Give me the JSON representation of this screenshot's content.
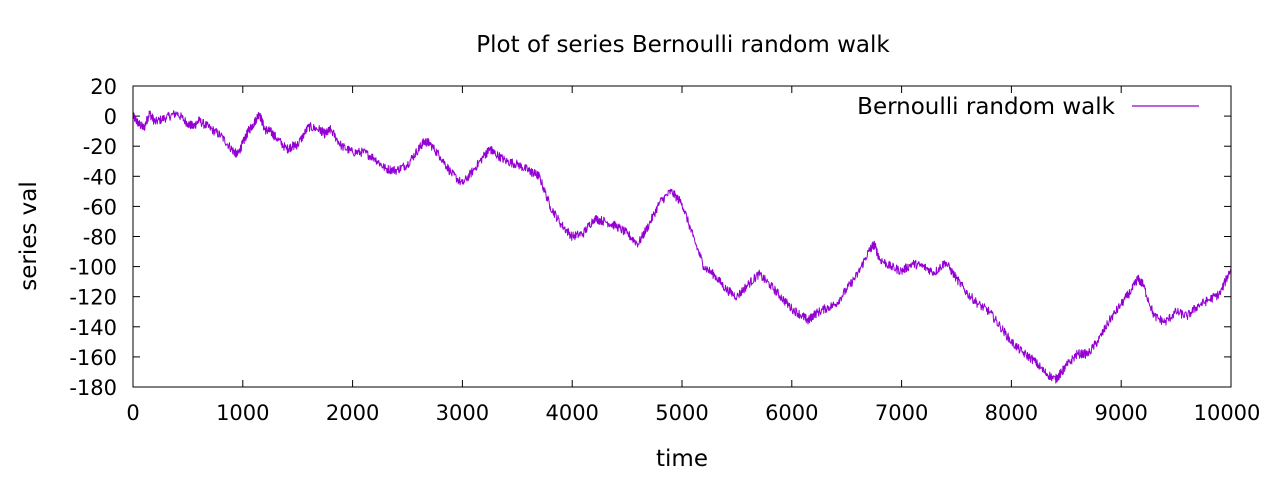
{
  "chart_data": {
    "type": "line",
    "title": "Plot of series Bernoulli random walk",
    "xlabel": "time",
    "ylabel": "series val",
    "xlim": [
      0,
      10000
    ],
    "ylim": [
      -180,
      20
    ],
    "xticks": [
      0,
      1000,
      2000,
      3000,
      4000,
      5000,
      6000,
      7000,
      8000,
      9000,
      10000
    ],
    "yticks": [
      20,
      0,
      -20,
      -40,
      -60,
      -80,
      -100,
      -120,
      -140,
      -160,
      -180
    ],
    "grid": false,
    "legend_position": "top-right",
    "series": [
      {
        "name": "Bernoulli random walk",
        "color": "#9400d3",
        "x": [
          0,
          50,
          100,
          150,
          200,
          300,
          400,
          500,
          550,
          600,
          700,
          800,
          900,
          950,
          1000,
          1050,
          1100,
          1150,
          1200,
          1250,
          1300,
          1400,
          1450,
          1500,
          1600,
          1700,
          1750,
          1800,
          1900,
          2000,
          2100,
          2200,
          2300,
          2400,
          2500,
          2600,
          2650,
          2700,
          2800,
          2900,
          3000,
          3100,
          3200,
          3250,
          3300,
          3400,
          3500,
          3600,
          3650,
          3700,
          3800,
          3900,
          4000,
          4100,
          4200,
          4300,
          4400,
          4500,
          4600,
          4700,
          4800,
          4900,
          5000,
          5100,
          5200,
          5300,
          5400,
          5500,
          5600,
          5700,
          5800,
          5900,
          6000,
          6100,
          6150,
          6200,
          6300,
          6400,
          6500,
          6600,
          6700,
          6750,
          6800,
          6900,
          7000,
          7100,
          7200,
          7300,
          7400,
          7500,
          7600,
          7700,
          7800,
          7900,
          8000,
          8100,
          8200,
          8300,
          8400,
          8450,
          8500,
          8600,
          8700,
          8800,
          8900,
          9000,
          9100,
          9150,
          9200,
          9300,
          9400,
          9500,
          9600,
          9700,
          9800,
          9900,
          10000
        ],
        "values": [
          0,
          -5,
          -8,
          2,
          -4,
          -1,
          2,
          -5,
          -7,
          -3,
          -8,
          -13,
          -22,
          -26,
          -18,
          -10,
          -5,
          2,
          -9,
          -10,
          -14,
          -22,
          -20,
          -19,
          -7,
          -9,
          -12,
          -9,
          -20,
          -24,
          -24,
          -28,
          -35,
          -36,
          -32,
          -22,
          -17,
          -18,
          -27,
          -38,
          -45,
          -36,
          -26,
          -22,
          -25,
          -30,
          -32,
          -36,
          -38,
          -40,
          -60,
          -72,
          -80,
          -78,
          -68,
          -70,
          -73,
          -78,
          -85,
          -72,
          -57,
          -50,
          -58,
          -80,
          -100,
          -106,
          -115,
          -120,
          -112,
          -105,
          -112,
          -120,
          -128,
          -133,
          -136,
          -132,
          -128,
          -125,
          -115,
          -105,
          -90,
          -85,
          -95,
          -100,
          -103,
          -98,
          -100,
          -104,
          -97,
          -108,
          -118,
          -125,
          -130,
          -140,
          -150,
          -157,
          -162,
          -170,
          -175,
          -171,
          -166,
          -158,
          -158,
          -148,
          -135,
          -125,
          -115,
          -108,
          -112,
          -133,
          -137,
          -130,
          -133,
          -126,
          -122,
          -118,
          -101
        ]
      }
    ]
  }
}
